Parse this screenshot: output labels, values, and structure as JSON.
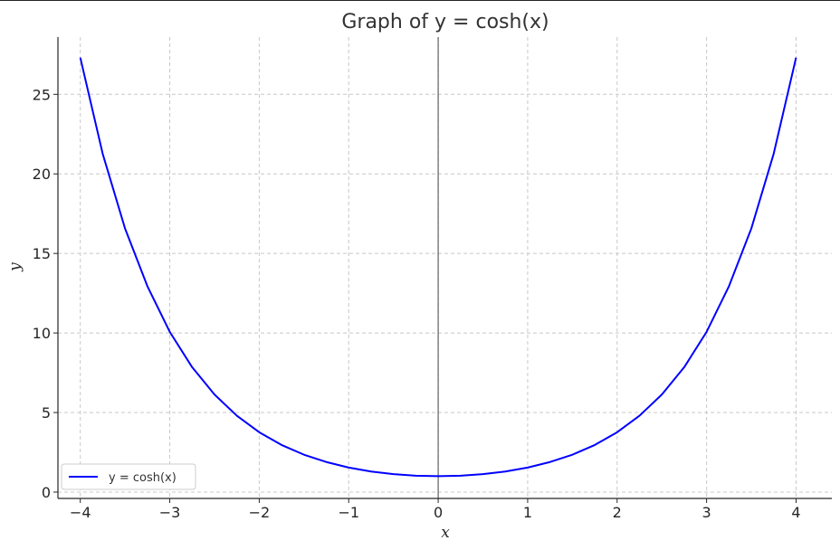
{
  "chart_data": {
    "type": "line",
    "title": "Graph of y = cosh(x)",
    "xlabel": "x",
    "ylabel": "y",
    "xlim": [
      -4.25,
      4.4
    ],
    "ylim": [
      -0.4,
      28.6
    ],
    "xticks": [
      -4,
      -3,
      -2,
      -1,
      0,
      1,
      2,
      3,
      4
    ],
    "xtick_labels": [
      "−4",
      "−3",
      "−2",
      "−1",
      "0",
      "1",
      "2",
      "3",
      "4"
    ],
    "yticks": [
      0,
      5,
      10,
      15,
      20,
      25
    ],
    "ytick_labels": [
      "0",
      "5",
      "10",
      "15",
      "20",
      "25"
    ],
    "grid": true,
    "legend_position": "lower-left",
    "series": [
      {
        "name": "y = cosh(x)",
        "color": "#0000ff",
        "x": [
          -4.0,
          -3.75,
          -3.5,
          -3.25,
          -3.0,
          -2.75,
          -2.5,
          -2.25,
          -2.0,
          -1.75,
          -1.5,
          -1.25,
          -1.0,
          -0.75,
          -0.5,
          -0.25,
          0.0,
          0.25,
          0.5,
          0.75,
          1.0,
          1.25,
          1.5,
          1.75,
          2.0,
          2.25,
          2.5,
          2.75,
          3.0,
          3.25,
          3.5,
          3.75,
          4.0
        ],
        "y": [
          27.31,
          21.27,
          16.57,
          12.94,
          10.07,
          7.85,
          6.13,
          4.8,
          3.76,
          2.96,
          2.35,
          1.89,
          1.54,
          1.29,
          1.13,
          1.03,
          1.0,
          1.03,
          1.13,
          1.29,
          1.54,
          1.89,
          2.35,
          2.96,
          3.76,
          4.8,
          6.13,
          7.85,
          10.07,
          12.94,
          16.57,
          21.27,
          27.31
        ]
      }
    ]
  },
  "colors": {
    "line": "#0000ff",
    "grid": "#c8c8c8",
    "axis": "#262626",
    "zero_line": "#444444"
  }
}
